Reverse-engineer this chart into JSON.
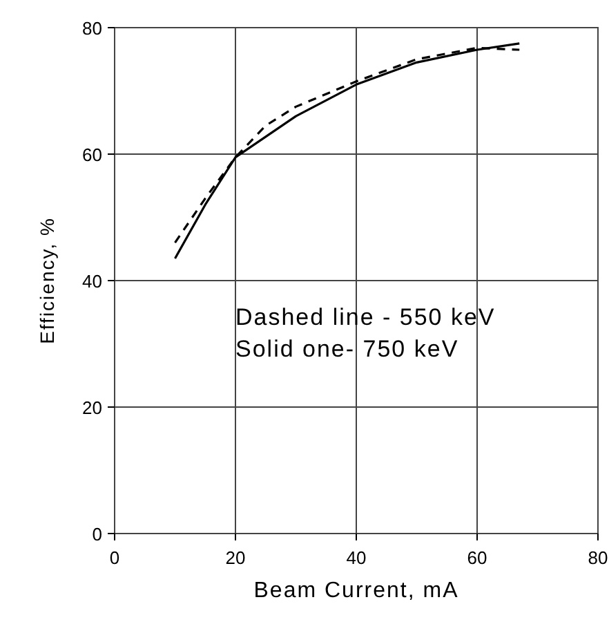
{
  "chart_data": {
    "type": "line",
    "xlabel": "Beam Current, mA",
    "ylabel": "Efficiency, %",
    "xlim": [
      0,
      80
    ],
    "ylim": [
      0,
      80
    ],
    "xticks": [
      0,
      20,
      40,
      60,
      80
    ],
    "yticks": [
      0,
      20,
      40,
      60,
      80
    ],
    "grid": true,
    "annotations": [
      "Dashed line - 550 keV",
      "Solid one- 750 keV"
    ],
    "series": [
      {
        "color": "#000000",
        "line_style": "dashed",
        "x": [
          10,
          15,
          20,
          25,
          30,
          40,
          50,
          60,
          67
        ],
        "values": [
          46,
          53,
          59.5,
          64.5,
          67.5,
          71.5,
          75,
          76.8,
          76.5
        ]
      },
      {
        "color": "#000000",
        "line_style": "solid",
        "x": [
          10,
          15,
          20,
          30,
          40,
          50,
          60,
          67
        ],
        "values": [
          43.5,
          52,
          59.5,
          66,
          71,
          74.5,
          76.5,
          77.5
        ]
      }
    ]
  }
}
